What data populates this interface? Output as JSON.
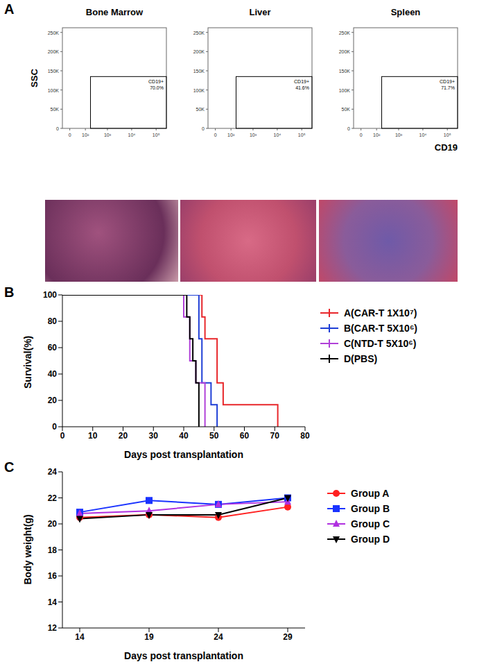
{
  "chart_data": [
    {
      "type": "flow_cytometry",
      "annotations": [
        "A"
      ],
      "title": "Bone Marrow",
      "y_label": "SSC",
      "xlim": [
        -30,
        262144
      ],
      "xticks": [
        0,
        {
          "value": 100,
          "label": "10²"
        },
        {
          "value": 1000,
          "label": "10³"
        },
        {
          "value": 10000,
          "label": "10⁴"
        },
        {
          "value": 100000,
          "label": "10⁵"
        }
      ],
      "ylim": [
        0,
        262144
      ],
      "yticks": [
        0,
        {
          "value": 50000,
          "label": "50K"
        },
        {
          "value": 100000,
          "label": "100K"
        },
        {
          "value": 150000,
          "label": "150K"
        },
        {
          "value": 200000,
          "label": "200K"
        },
        {
          "value": 250000,
          "label": "250K"
        }
      ],
      "gate": {
        "name": "CD19+",
        "x": [
          180,
          262144
        ],
        "y": [
          0,
          135000
        ],
        "value": 70,
        "value_label": "70.0%"
      }
    },
    {
      "type": "flow_cytometry",
      "title": "Liver",
      "xlim": [
        -30,
        262144
      ],
      "xticks": [
        0,
        {
          "value": 100,
          "label": "10²"
        },
        {
          "value": 1000,
          "label": "10³"
        },
        {
          "value": 10000,
          "label": "10⁴"
        },
        {
          "value": 100000,
          "label": "10⁵"
        }
      ],
      "ylim": [
        0,
        262144
      ],
      "yticks": [
        0,
        {
          "value": 50000,
          "label": "50K"
        },
        {
          "value": 100000,
          "label": "100K"
        },
        {
          "value": 150000,
          "label": "150K"
        },
        {
          "value": 200000,
          "label": "200K"
        },
        {
          "value": 250000,
          "label": "250K"
        }
      ],
      "gate": {
        "name": "CD19+",
        "x": [
          180,
          262144
        ],
        "y": [
          0,
          135000
        ],
        "value": 41.6,
        "value_label": "41.6%"
      }
    },
    {
      "type": "flow_cytometry",
      "title": "Spleen",
      "x_label": "CD19",
      "xlim": [
        -30,
        262144
      ],
      "xticks": [
        0,
        {
          "value": 100,
          "label": "10²"
        },
        {
          "value": 1000,
          "label": "10³"
        },
        {
          "value": 10000,
          "label": "10⁴"
        },
        {
          "value": 100000,
          "label": "10⁵"
        }
      ],
      "ylim": [
        0,
        262144
      ],
      "yticks": [
        0,
        {
          "value": 50000,
          "label": "50K"
        },
        {
          "value": 100000,
          "label": "100K"
        },
        {
          "value": 150000,
          "label": "150K"
        },
        {
          "value": 200000,
          "label": "200K"
        },
        {
          "value": 250000,
          "label": "250K"
        }
      ],
      "gate": {
        "name": "CD19+",
        "x": [
          180,
          262144
        ],
        "y": [
          0,
          135000
        ],
        "value": 71.7,
        "value_label": "71.7%"
      }
    },
    {
      "type": "line",
      "annotations": [
        "B"
      ],
      "line_style": "step",
      "legend": "right",
      "x_label": "Days post transplantation",
      "y_label": "Survival(%)",
      "xlim": [
        0,
        80
      ],
      "xticks": [
        0,
        10,
        20,
        30,
        40,
        50,
        60,
        70,
        80
      ],
      "ylim": [
        0,
        100
      ],
      "yticks": [
        0,
        20,
        40,
        60,
        80,
        100
      ],
      "series": [
        {
          "name": "A(CAR-T 1X10⁷)",
          "color": "#e8262a",
          "x": [
            0,
            46,
            47,
            51,
            53,
            71
          ],
          "values": [
            100,
            83.3,
            66.7,
            33.3,
            16.7,
            0
          ]
        },
        {
          "name": "B(CAR-T 5X10⁶)",
          "color": "#1f3fd6",
          "x": [
            0,
            45,
            46,
            49,
            51
          ],
          "values": [
            100,
            66.7,
            33.3,
            16.7,
            0
          ]
        },
        {
          "name": "C(NTD-T 5X10⁶)",
          "color": "#b040d8",
          "x": [
            0,
            40,
            42,
            44,
            47
          ],
          "values": [
            100,
            83.3,
            50,
            33.3,
            0
          ]
        },
        {
          "name": "D(PBS)",
          "color": "#000000",
          "x": [
            0,
            41,
            42,
            43,
            44,
            45
          ],
          "values": [
            100,
            83.3,
            66.7,
            50,
            33.3,
            0
          ]
        }
      ]
    },
    {
      "type": "line",
      "annotations": [
        "C"
      ],
      "legend": "right",
      "x_label": "Days post transplantation",
      "y_label": "Body weight(g)",
      "categories": [
        "14",
        "19",
        "24",
        "29"
      ],
      "ylim": [
        12,
        24
      ],
      "yticks": [
        12,
        14,
        16,
        18,
        20,
        22,
        24
      ],
      "series": [
        {
          "name": "Group A",
          "color": "#ff2020",
          "marker": "circle",
          "values": [
            20.5,
            20.7,
            20.5,
            21.3
          ]
        },
        {
          "name": "Group B",
          "color": "#1a33ff",
          "marker": "square",
          "values": [
            20.9,
            21.8,
            21.5,
            22.0
          ]
        },
        {
          "name": "Group C",
          "color": "#b030e0",
          "marker": "triangle",
          "values": [
            20.8,
            21.0,
            21.5,
            21.7
          ]
        },
        {
          "name": "Group D",
          "color": "#000000",
          "marker": "triangle-down",
          "values": [
            20.4,
            20.7,
            20.7,
            22.0
          ]
        }
      ]
    }
  ]
}
